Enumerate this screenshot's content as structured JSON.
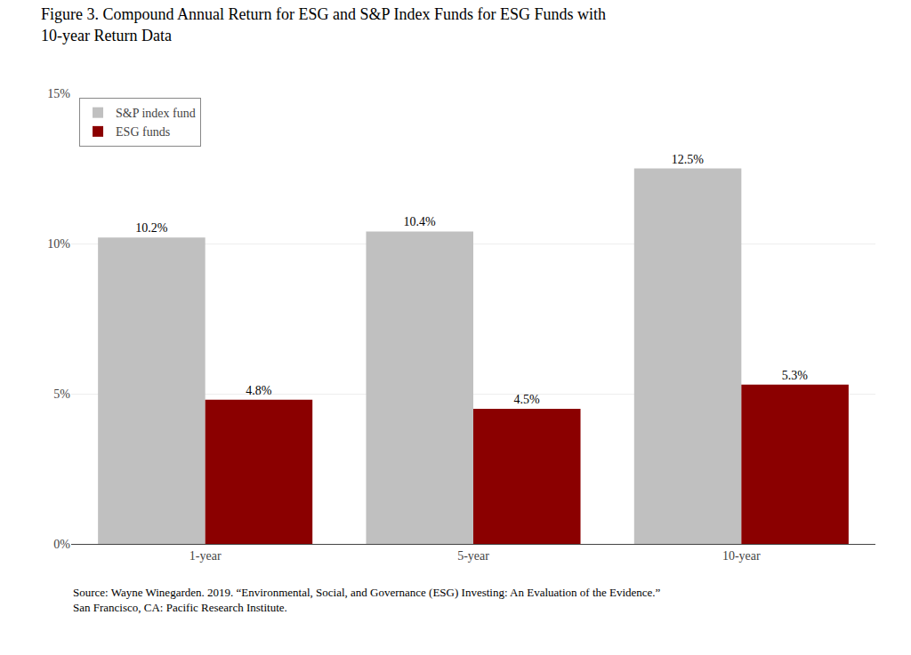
{
  "chart_data": {
    "type": "bar",
    "title": "Figure 3. Compound Annual Return for ESG and S&P Index Funds for ESG Funds with 10-year Return Data",
    "annotations": [
      "Source: Wayne Winegarden. 2019. “Environmental, Social, and Governance (ESG) Investing: An Evaluation of the Evidence.” San Francisco, CA: Pacific Research Institute."
    ],
    "categories": [
      "1-year",
      "5-year",
      "10-year"
    ],
    "series": [
      {
        "name": "S&P index fund",
        "color": "#C0C0C0",
        "values": [
          10.2,
          10.4,
          12.5
        ],
        "value_labels": [
          "10.2%",
          "10.4%",
          "12.5%"
        ]
      },
      {
        "name": "ESG funds",
        "color": "#8B0000",
        "values": [
          4.8,
          4.5,
          5.3
        ],
        "value_labels": [
          "4.8%",
          "4.5%",
          "5.3%"
        ]
      }
    ],
    "ylim": [
      0,
      15
    ],
    "yticks": [
      {
        "value": 0,
        "label": "0%"
      },
      {
        "value": 5,
        "label": "5%"
      },
      {
        "value": 10,
        "label": "10%"
      },
      {
        "value": 15,
        "label": "15%"
      }
    ],
    "grid": true,
    "legend": "upper left",
    "data_labels": true
  }
}
